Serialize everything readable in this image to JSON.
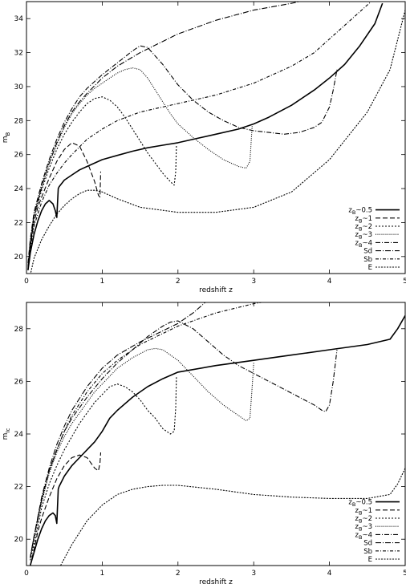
{
  "chart_data": [
    {
      "type": "line",
      "xlabel": "redshift z",
      "ylabel": "m_B",
      "ylabel_main": "m",
      "ylabel_sub": "B",
      "xlim": [
        0,
        5
      ],
      "ylim": [
        19,
        35
      ],
      "xticks": [
        0,
        1,
        2,
        3,
        4,
        5
      ],
      "yticks": [
        20,
        22,
        24,
        26,
        28,
        30,
        32,
        34
      ],
      "grid": false,
      "legend_position": "bottom-right",
      "series": [
        {
          "name": "z_B~0.5",
          "label_main": "z",
          "label_sub": "B",
          "label_rest": "~0.5",
          "dash": "",
          "width": 1.6,
          "x": [
            0.02,
            0.05,
            0.1,
            0.15,
            0.2,
            0.25,
            0.3,
            0.35,
            0.38,
            0.4,
            0.42,
            0.43,
            0.5,
            0.6,
            0.7,
            0.8,
            1.0,
            1.2,
            1.4,
            1.6,
            1.8,
            2.0,
            2.2,
            2.5,
            2.8,
            3.0,
            3.2,
            3.5,
            3.8,
            4.0,
            4.2,
            4.4,
            4.6,
            4.7
          ],
          "y": [
            19.2,
            20.2,
            21.3,
            22.1,
            22.7,
            23.1,
            23.3,
            23.1,
            22.7,
            22.3,
            24.0,
            24.1,
            24.5,
            24.8,
            25.1,
            25.3,
            25.7,
            25.95,
            26.2,
            26.4,
            26.55,
            26.7,
            26.9,
            27.2,
            27.5,
            27.8,
            28.2,
            28.9,
            29.8,
            30.5,
            31.3,
            32.4,
            33.7,
            34.9
          ]
        },
        {
          "name": "z_B~1",
          "label_main": "z",
          "label_sub": "B",
          "label_rest": "~1",
          "dash": "6,3",
          "width": 1.1,
          "x": [
            0.02,
            0.05,
            0.1,
            0.15,
            0.2,
            0.3,
            0.4,
            0.5,
            0.6,
            0.7,
            0.8,
            0.9,
            0.95,
            0.97,
            0.98
          ],
          "y": [
            19.3,
            20.6,
            22.0,
            22.9,
            23.5,
            24.6,
            25.6,
            26.3,
            26.7,
            26.5,
            25.6,
            24.4,
            23.6,
            23.5,
            25.0
          ]
        },
        {
          "name": "z_B~2",
          "label_main": "z",
          "label_sub": "B",
          "label_rest": "~2",
          "dash": "2,2",
          "width": 1.1,
          "x": [
            0.02,
            0.05,
            0.1,
            0.2,
            0.3,
            0.4,
            0.5,
            0.6,
            0.7,
            0.8,
            0.9,
            1.0,
            1.1,
            1.2,
            1.3,
            1.4,
            1.5,
            1.6,
            1.7,
            1.8,
            1.9,
            1.95,
            1.97,
            1.98
          ],
          "y": [
            19.4,
            20.8,
            22.3,
            23.9,
            25.2,
            26.3,
            27.2,
            27.9,
            28.5,
            29.0,
            29.3,
            29.4,
            29.2,
            28.8,
            28.2,
            27.5,
            26.8,
            26.1,
            25.5,
            24.9,
            24.4,
            24.2,
            25.0,
            26.6
          ]
        },
        {
          "name": "z_B~3",
          "label_main": "z",
          "label_sub": "B",
          "label_rest": "~3",
          "dash": "1,1.5",
          "width": 1.1,
          "x": [
            0.02,
            0.05,
            0.1,
            0.2,
            0.3,
            0.4,
            0.5,
            0.6,
            0.7,
            0.8,
            0.9,
            1.0,
            1.1,
            1.2,
            1.3,
            1.4,
            1.5,
            1.6,
            1.7,
            1.8,
            1.9,
            2.0,
            2.2,
            2.4,
            2.6,
            2.8,
            2.9,
            2.95,
            2.98
          ],
          "y": [
            19.5,
            20.9,
            22.5,
            24.1,
            25.5,
            26.6,
            27.6,
            28.4,
            29.0,
            29.5,
            29.9,
            30.2,
            30.5,
            30.8,
            31.0,
            31.1,
            31.0,
            30.5,
            29.8,
            29.1,
            28.4,
            27.8,
            27.0,
            26.3,
            25.7,
            25.3,
            25.2,
            25.6,
            27.7
          ]
        },
        {
          "name": "z_B~4",
          "label_main": "z",
          "label_sub": "B",
          "label_rest": "~4",
          "dash": "6,2,1,2",
          "width": 1.1,
          "x": [
            0.02,
            0.05,
            0.1,
            0.2,
            0.3,
            0.4,
            0.5,
            0.6,
            0.7,
            0.8,
            1.0,
            1.2,
            1.4,
            1.5,
            1.6,
            1.8,
            2.0,
            2.2,
            2.4,
            2.6,
            2.8,
            3.0,
            3.2,
            3.4,
            3.6,
            3.8,
            3.9,
            4.0,
            4.05,
            4.1
          ],
          "y": [
            19.6,
            21.0,
            22.6,
            24.3,
            25.7,
            26.9,
            27.9,
            28.7,
            29.4,
            29.9,
            30.7,
            31.4,
            32.1,
            32.4,
            32.3,
            31.3,
            30.1,
            29.2,
            28.5,
            28.0,
            27.6,
            27.4,
            27.3,
            27.2,
            27.3,
            27.6,
            27.9,
            28.8,
            29.8,
            31.0
          ]
        },
        {
          "name": "Sd",
          "label_main": "Sd",
          "label_sub": "",
          "label_rest": "",
          "dash": "7,2,1,2",
          "width": 1.1,
          "x": [
            0.02,
            0.05,
            0.1,
            0.2,
            0.3,
            0.4,
            0.5,
            0.6,
            0.7,
            0.8,
            1.0,
            1.2,
            1.5,
            2.0,
            2.5,
            3.0,
            3.5,
            3.8,
            4.0,
            4.2,
            4.4
          ],
          "y": [
            19.3,
            20.7,
            22.4,
            24.1,
            25.5,
            26.7,
            27.7,
            28.5,
            29.1,
            29.6,
            30.5,
            31.2,
            32.0,
            33.1,
            33.9,
            34.5,
            34.9,
            35.2,
            35.5,
            35.8,
            36.2
          ]
        },
        {
          "name": "Sb",
          "label_main": "Sb",
          "label_sub": "",
          "label_rest": "",
          "dash": "4,2,1,2",
          "width": 1.1,
          "x": [
            0.02,
            0.05,
            0.1,
            0.2,
            0.3,
            0.4,
            0.5,
            0.6,
            0.8,
            1.0,
            1.2,
            1.5,
            2.0,
            2.5,
            3.0,
            3.5,
            3.8,
            4.0,
            4.2,
            4.4,
            4.6
          ],
          "y": [
            19.2,
            20.4,
            21.8,
            23.2,
            24.2,
            24.9,
            25.5,
            26.0,
            26.9,
            27.5,
            28.0,
            28.5,
            29.0,
            29.5,
            30.2,
            31.2,
            32.0,
            32.8,
            33.6,
            34.4,
            35.2
          ]
        },
        {
          "name": "E",
          "label_main": "E",
          "label_sub": "",
          "label_rest": "",
          "dash": "2,1.5",
          "width": 1.1,
          "x": [
            0.05,
            0.1,
            0.2,
            0.3,
            0.4,
            0.5,
            0.6,
            0.7,
            0.8,
            0.9,
            1.0,
            1.2,
            1.5,
            2.0,
            2.5,
            3.0,
            3.5,
            4.0,
            4.5,
            4.8,
            5.0
          ],
          "y": [
            18.9,
            19.9,
            21.0,
            21.8,
            22.5,
            23.0,
            23.4,
            23.7,
            23.9,
            23.9,
            23.8,
            23.4,
            22.9,
            22.6,
            22.6,
            22.9,
            23.8,
            25.7,
            28.5,
            31.0,
            34.5
          ]
        }
      ]
    },
    {
      "type": "line",
      "xlabel": "redshift z",
      "ylabel": "m_Ic",
      "ylabel_main": "m",
      "ylabel_sub": "Ic",
      "xlim": [
        0,
        5
      ],
      "ylim": [
        19,
        29
      ],
      "xticks": [
        0,
        1,
        2,
        3,
        4,
        5
      ],
      "yticks": [
        20,
        22,
        24,
        26,
        28
      ],
      "grid": false,
      "legend_position": "bottom-right",
      "series": [
        {
          "name": "z_B~0.5",
          "label_main": "z",
          "label_sub": "B",
          "label_rest": "~0.5",
          "dash": "",
          "width": 1.6,
          "x": [
            0.05,
            0.1,
            0.15,
            0.2,
            0.25,
            0.3,
            0.35,
            0.38,
            0.4,
            0.42,
            0.43,
            0.5,
            0.6,
            0.7,
            0.8,
            0.9,
            1.0,
            1.1,
            1.2,
            1.4,
            1.6,
            1.8,
            2.0,
            2.5,
            3.0,
            3.5,
            4.0,
            4.5,
            4.8,
            4.9,
            5.0
          ],
          "y": [
            19.0,
            19.5,
            20.0,
            20.4,
            20.7,
            20.9,
            21.0,
            20.9,
            20.6,
            21.9,
            22.0,
            22.4,
            22.8,
            23.1,
            23.4,
            23.7,
            24.1,
            24.6,
            24.9,
            25.4,
            25.8,
            26.1,
            26.35,
            26.6,
            26.8,
            27.0,
            27.2,
            27.4,
            27.6,
            28.0,
            28.5
          ]
        },
        {
          "name": "z_B~1",
          "label_main": "z",
          "label_sub": "B",
          "label_rest": "~1",
          "dash": "6,3",
          "width": 1.1,
          "x": [
            0.05,
            0.1,
            0.15,
            0.2,
            0.3,
            0.4,
            0.5,
            0.6,
            0.7,
            0.8,
            0.9,
            0.95,
            0.97,
            0.98
          ],
          "y": [
            19.0,
            19.6,
            20.3,
            20.8,
            21.6,
            22.3,
            22.8,
            23.1,
            23.2,
            23.1,
            22.7,
            22.6,
            22.9,
            23.3
          ]
        },
        {
          "name": "z_B~2",
          "label_main": "z",
          "label_sub": "B",
          "label_rest": "~2",
          "dash": "2,2",
          "width": 1.1,
          "x": [
            0.05,
            0.1,
            0.2,
            0.3,
            0.4,
            0.5,
            0.6,
            0.7,
            0.8,
            0.9,
            1.0,
            1.1,
            1.2,
            1.3,
            1.4,
            1.5,
            1.6,
            1.7,
            1.8,
            1.9,
            1.95,
            1.97,
            1.98
          ],
          "y": [
            19.2,
            19.8,
            21.2,
            22.1,
            22.8,
            23.4,
            23.9,
            24.4,
            24.8,
            25.2,
            25.5,
            25.8,
            25.9,
            25.8,
            25.6,
            25.3,
            24.9,
            24.6,
            24.2,
            24.0,
            24.1,
            25.0,
            26.2
          ]
        },
        {
          "name": "z_B~3",
          "label_main": "z",
          "label_sub": "B",
          "label_rest": "~3",
          "dash": "1,1.5",
          "width": 1.1,
          "x": [
            0.05,
            0.1,
            0.2,
            0.3,
            0.4,
            0.5,
            0.6,
            0.7,
            0.8,
            0.9,
            1.0,
            1.2,
            1.4,
            1.6,
            1.7,
            1.8,
            2.0,
            2.2,
            2.4,
            2.6,
            2.8,
            2.9,
            2.95,
            2.98,
            3.0
          ],
          "y": [
            19.3,
            20.0,
            21.4,
            22.5,
            23.3,
            23.9,
            24.4,
            24.8,
            25.2,
            25.6,
            25.9,
            26.5,
            26.9,
            27.2,
            27.25,
            27.2,
            26.8,
            26.2,
            25.6,
            25.1,
            24.7,
            24.5,
            24.6,
            25.8,
            26.7
          ]
        },
        {
          "name": "z_B~4",
          "label_main": "z",
          "label_sub": "B",
          "label_rest": "~4",
          "dash": "6,2,1,2",
          "width": 1.1,
          "x": [
            0.05,
            0.1,
            0.2,
            0.3,
            0.4,
            0.5,
            0.6,
            0.7,
            0.8,
            1.0,
            1.2,
            1.4,
            1.6,
            1.8,
            1.9,
            2.0,
            2.2,
            2.4,
            2.6,
            2.8,
            3.0,
            3.2,
            3.4,
            3.6,
            3.8,
            3.9,
            3.95,
            4.0,
            4.05,
            4.1
          ],
          "y": [
            19.3,
            20.1,
            21.5,
            22.6,
            23.4,
            24.1,
            24.6,
            25.0,
            25.4,
            26.1,
            26.7,
            27.2,
            27.7,
            28.1,
            28.25,
            28.3,
            28.0,
            27.5,
            27.0,
            26.6,
            26.3,
            26.0,
            25.7,
            25.4,
            25.1,
            24.9,
            24.85,
            25.1,
            26.0,
            27.2
          ]
        },
        {
          "name": "Sd",
          "label_main": "Sd",
          "label_sub": "",
          "label_rest": "",
          "dash": "7,2,1,2",
          "width": 1.1,
          "x": [
            0.05,
            0.1,
            0.2,
            0.3,
            0.4,
            0.5,
            0.6,
            0.8,
            1.0,
            1.2,
            1.5,
            2.0,
            2.2,
            2.4
          ],
          "y": [
            19.3,
            20.1,
            21.6,
            22.7,
            23.6,
            24.3,
            24.9,
            25.8,
            26.5,
            27.0,
            27.5,
            28.2,
            28.6,
            29.1
          ]
        },
        {
          "name": "Sb",
          "label_main": "Sb",
          "label_sub": "",
          "label_rest": "",
          "dash": "4,2,1,2",
          "width": 1.1,
          "x": [
            0.05,
            0.1,
            0.2,
            0.3,
            0.4,
            0.5,
            0.6,
            0.8,
            1.0,
            1.2,
            1.5,
            2.0,
            2.5,
            3.0,
            3.2
          ],
          "y": [
            19.3,
            20.1,
            21.5,
            22.6,
            23.4,
            24.1,
            24.7,
            25.6,
            26.3,
            26.8,
            27.4,
            28.1,
            28.6,
            28.95,
            29.05
          ]
        },
        {
          "name": "E",
          "label_main": "E",
          "label_sub": "",
          "label_rest": "",
          "dash": "2,1.5",
          "width": 1.1,
          "x": [
            0.45,
            0.6,
            0.8,
            1.0,
            1.2,
            1.4,
            1.6,
            1.8,
            2.0,
            2.5,
            3.0,
            3.5,
            4.0,
            4.5,
            4.8,
            4.9,
            5.0
          ],
          "y": [
            19.0,
            19.8,
            20.7,
            21.3,
            21.7,
            21.9,
            22.0,
            22.05,
            22.05,
            21.9,
            21.7,
            21.6,
            21.55,
            21.55,
            21.7,
            22.1,
            22.7
          ]
        }
      ]
    }
  ]
}
